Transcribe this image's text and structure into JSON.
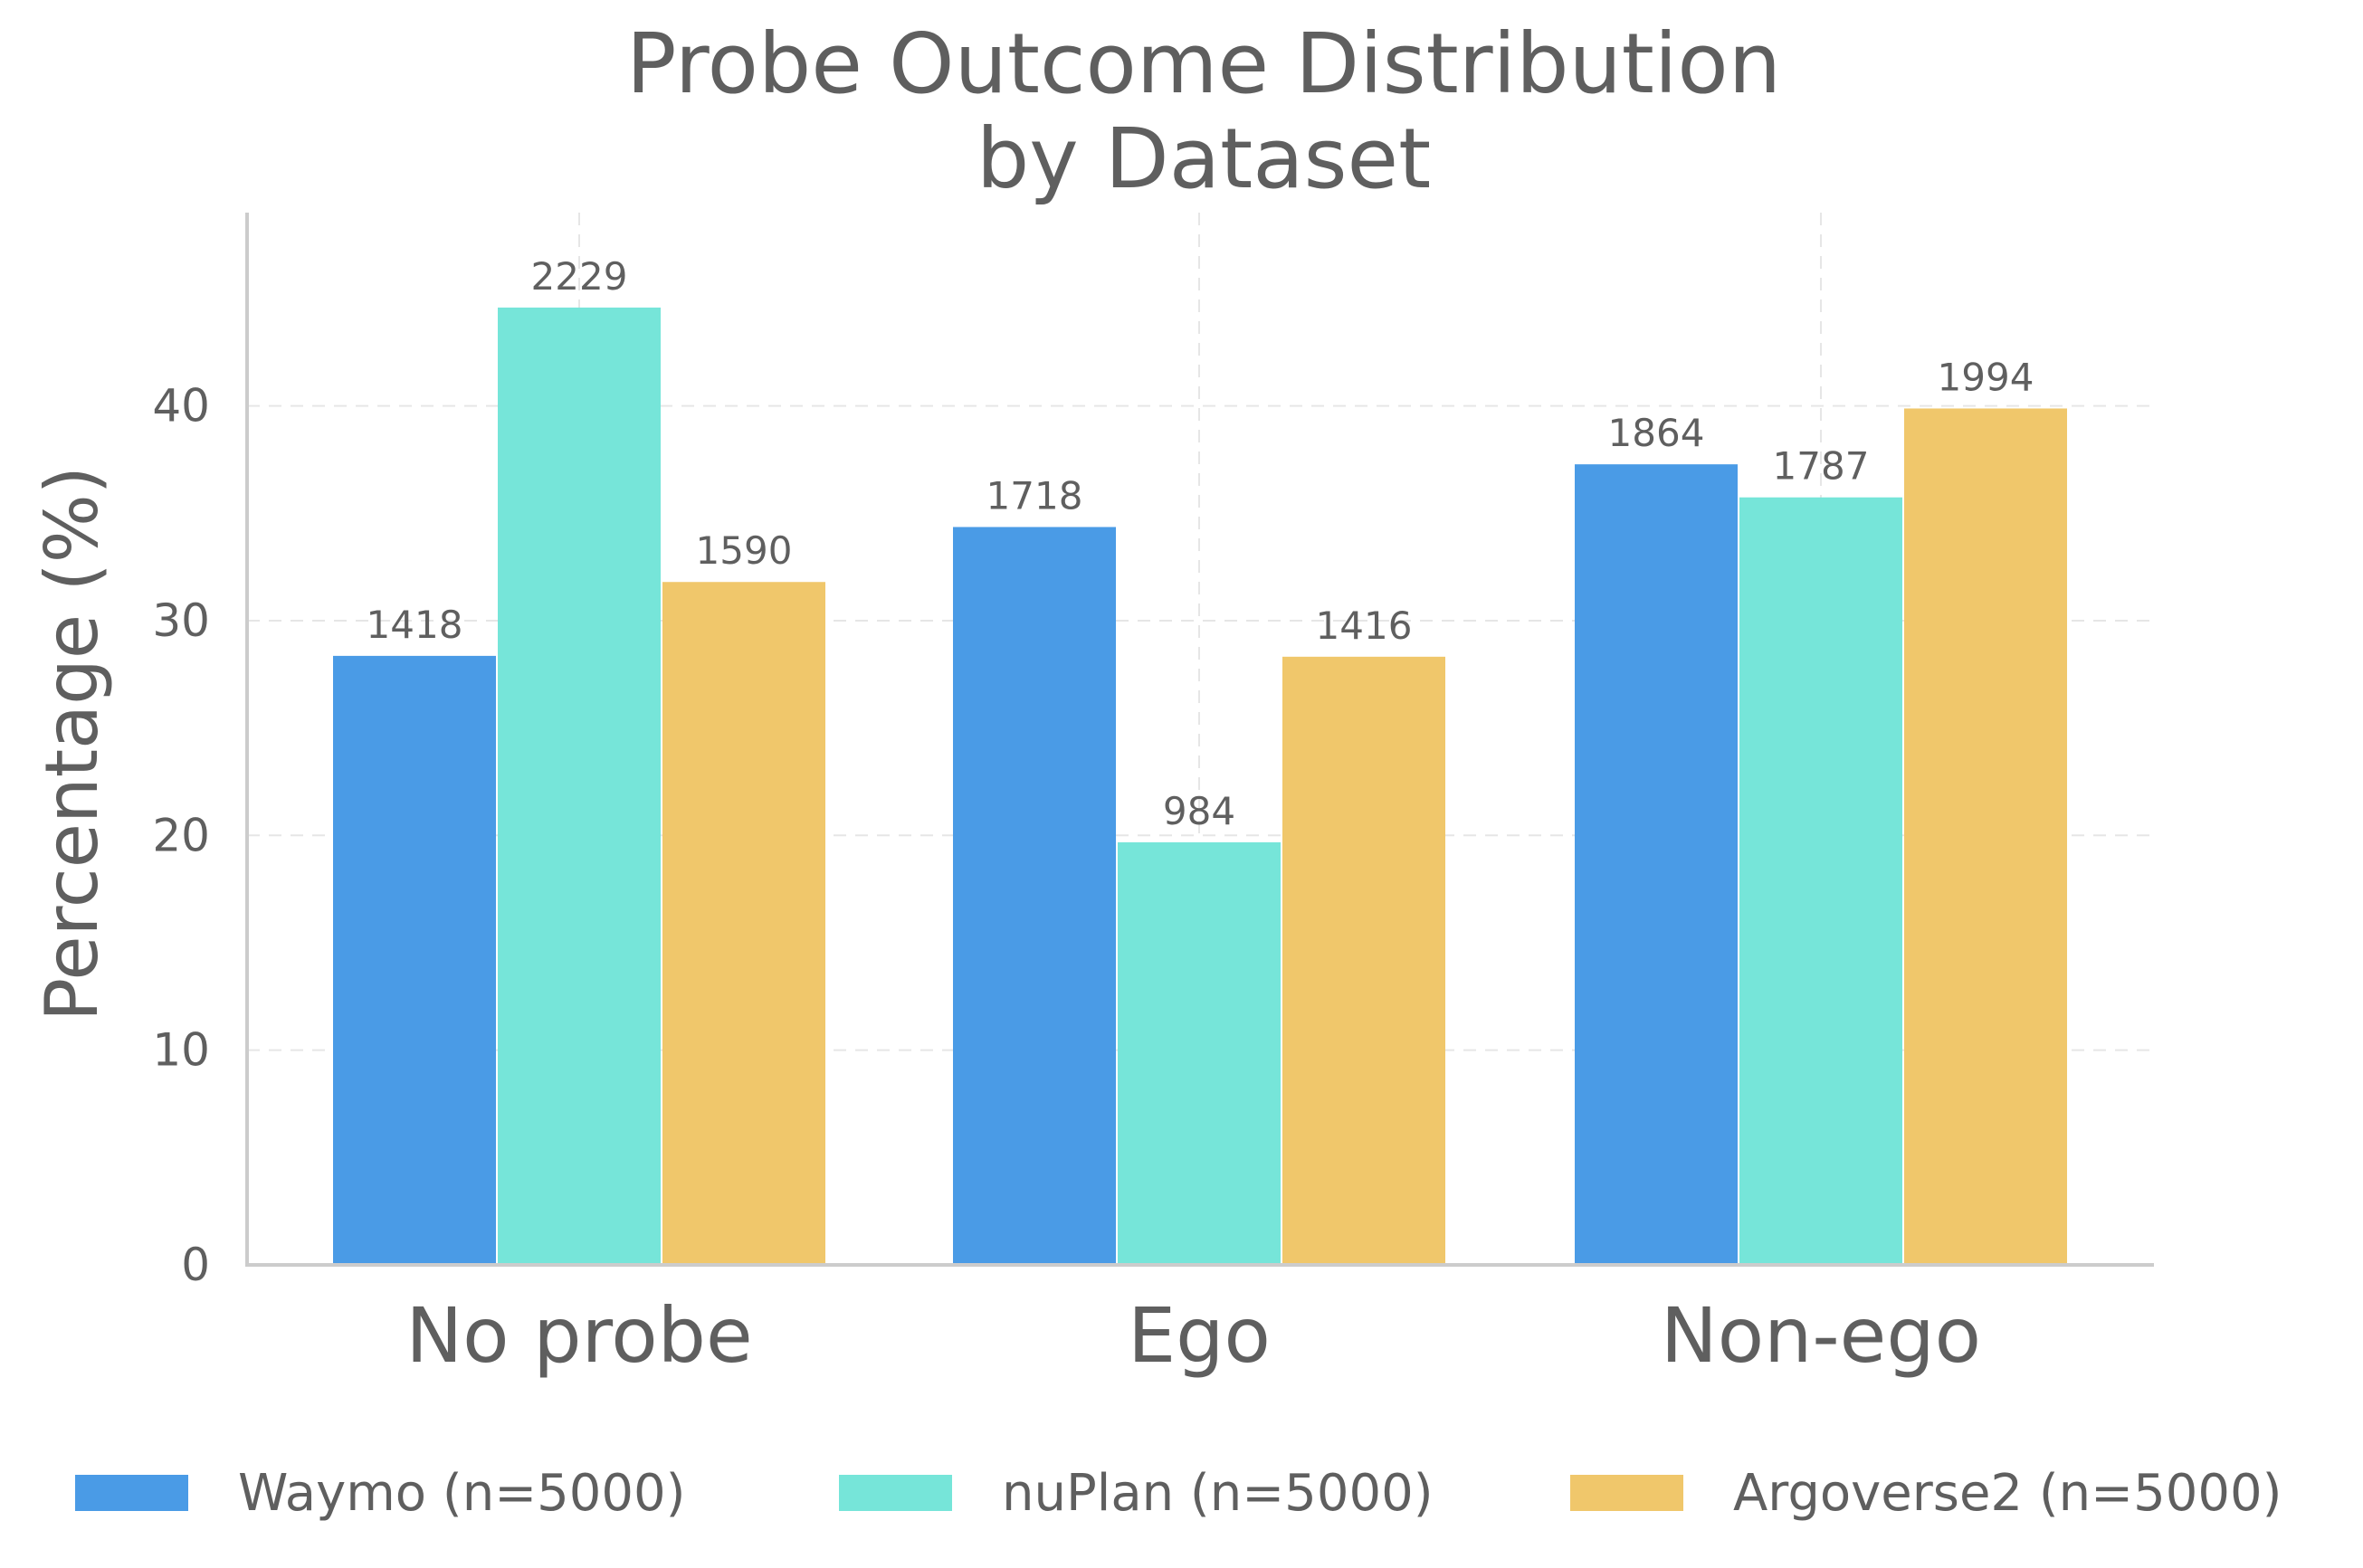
{
  "chart_data": {
    "type": "bar",
    "title_lines": [
      "Probe Outcome Distribution",
      "by Dataset"
    ],
    "xlabel": "",
    "ylabel": "Percentage (%)",
    "ylim": [
      0,
      49
    ],
    "yticks": [
      0,
      10,
      20,
      30,
      40
    ],
    "grid": true,
    "legend_position": "bottom",
    "categories": [
      "No probe",
      "Ego",
      "Non-ego"
    ],
    "series": [
      {
        "name": "Waymo (n=5000)",
        "color": "#4a9be6",
        "values": [
          28.36,
          34.36,
          37.28
        ],
        "labels": [
          "1418",
          "1718",
          "1864"
        ]
      },
      {
        "name": "nuPlan (n=5000)",
        "color": "#76e5d9",
        "values": [
          44.58,
          19.68,
          35.74
        ],
        "labels": [
          "2229",
          "984",
          "1787"
        ]
      },
      {
        "name": "Argoverse2 (n=5000)",
        "color": "#f0c76b",
        "values": [
          31.8,
          28.32,
          39.88
        ],
        "labels": [
          "1590",
          "1416",
          "1994"
        ]
      }
    ]
  }
}
